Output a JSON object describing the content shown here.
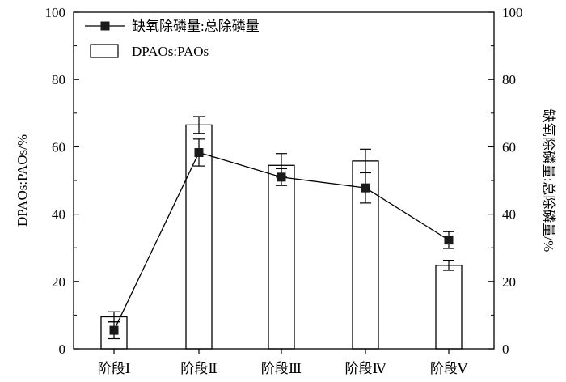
{
  "chart_data": {
    "type": "bar",
    "categories": [
      "阶段Ⅰ",
      "阶段Ⅱ",
      "阶段Ⅲ",
      "阶段Ⅳ",
      "阶段Ⅴ"
    ],
    "series": [
      {
        "name": "DPAOs:PAOs",
        "type": "bar",
        "axis": "left",
        "values": [
          9.5,
          66.5,
          54.5,
          55.8,
          24.8
        ],
        "errors": [
          1.5,
          2.5,
          3.5,
          3.5,
          1.5
        ]
      },
      {
        "name": "缺氧除磷量:总除磷量",
        "type": "line",
        "axis": "right",
        "marker": "square",
        "values": [
          5.5,
          58.3,
          51.0,
          47.8,
          32.3
        ],
        "errors": [
          2.5,
          4.0,
          2.5,
          4.5,
          2.5
        ]
      }
    ],
    "ylabel": "DPAOs:PAOs/%",
    "y2label": "缺氧除磷量:总除磷量/%",
    "ylim": [
      0,
      100
    ],
    "y2lim": [
      0,
      100
    ],
    "yticks": [
      "0",
      "20",
      "40",
      "60",
      "80",
      "100"
    ],
    "y2ticks": [
      "0",
      "20",
      "40",
      "60",
      "80",
      "100"
    ],
    "legend_position": "top-left",
    "grid": false
  }
}
